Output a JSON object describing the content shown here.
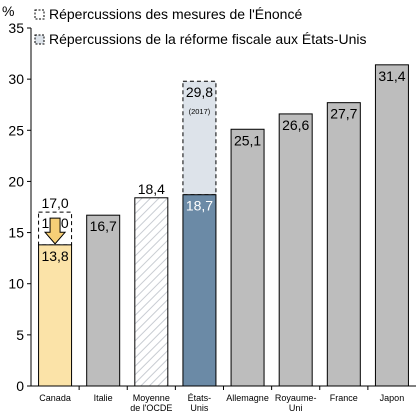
{
  "chart_data": {
    "type": "bar",
    "ylabel": "%",
    "ylim": [
      0,
      35
    ],
    "yticks": [
      0,
      5,
      10,
      15,
      20,
      25,
      30,
      35
    ],
    "grid": false,
    "legend_position": "top-left",
    "legend": [
      {
        "label": "Répercussions des mesures de l'Énoncé",
        "style": "dashed"
      },
      {
        "label": "Répercussions de la réforme fiscale aux États-Unis",
        "style": "dashed-light"
      }
    ],
    "categories": [
      [
        "Canada"
      ],
      [
        "Italie"
      ],
      [
        "Moyenne",
        "de l'OCDE"
      ],
      [
        "États-",
        "Unis"
      ],
      [
        "Allemagne"
      ],
      [
        "Royaume-",
        "Uni"
      ],
      [
        "France"
      ],
      [
        "Japon"
      ]
    ],
    "bars": [
      {
        "value": 13.8,
        "label": "13,8",
        "before": 17.0,
        "before_label": "17,0",
        "fill": "#fbe3a8",
        "kind": "after-measure"
      },
      {
        "value": 16.7,
        "label": "16,7",
        "fill": "#bdbdbd"
      },
      {
        "value": 18.4,
        "label": "18,4",
        "fill": "hatch",
        "label_above": true
      },
      {
        "value": 18.7,
        "label": "18,7",
        "before": 29.8,
        "before_label": "29,8",
        "before_note": "(2017)",
        "fill": "#6b8aa6",
        "kind": "after-reform"
      },
      {
        "value": 25.1,
        "label": "25,1",
        "fill": "#bdbdbd"
      },
      {
        "value": 26.6,
        "label": "26,6",
        "fill": "#bdbdbd"
      },
      {
        "value": 27.7,
        "label": "27,7",
        "fill": "#bdbdbd"
      },
      {
        "value": 31.4,
        "label": "31,4",
        "fill": "#bdbdbd"
      }
    ],
    "colors": {
      "canada": "#fbe3a8",
      "arrow": "#f6cf77",
      "others": "#bdbdbd",
      "us": "#6b8aa6",
      "us_before": "#dde3ea"
    }
  }
}
